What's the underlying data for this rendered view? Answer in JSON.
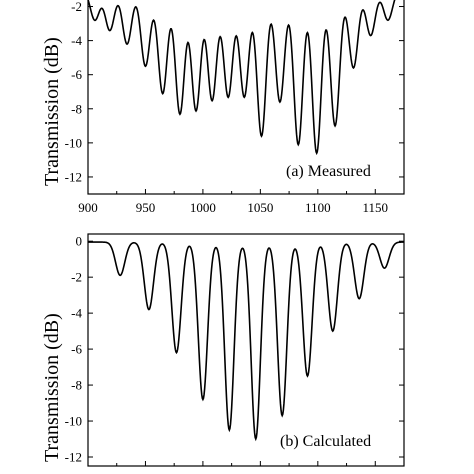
{
  "chart_data": [
    {
      "type": "line",
      "panel": "a",
      "annotation": "(a) Measured",
      "ylabel": "Transmission (dB)",
      "xlim": [
        900,
        1175
      ],
      "ylim": [
        -13,
        -1.5
      ],
      "x_ticks": [
        "900",
        "950",
        "1000",
        "1050",
        "1100",
        "1150"
      ],
      "y_ticks": [
        "-2",
        "-4",
        "-6",
        "-8",
        "-10",
        "-12"
      ],
      "series": [
        {
          "dips": [
            {
              "x": 906,
              "y": -2.8
            },
            {
              "x": 919,
              "y": -3.4
            },
            {
              "x": 934,
              "y": -4.2
            },
            {
              "x": 950,
              "y": -5.5
            },
            {
              "x": 965,
              "y": -7.1
            },
            {
              "x": 980,
              "y": -8.3
            },
            {
              "x": 994,
              "y": -8.1
            },
            {
              "x": 1008,
              "y": -7.5
            },
            {
              "x": 1022,
              "y": -7.3
            },
            {
              "x": 1036,
              "y": -7.3
            },
            {
              "x": 1051,
              "y": -9.6
            },
            {
              "x": 1067,
              "y": -7.6
            },
            {
              "x": 1083,
              "y": -10.1
            },
            {
              "x": 1099,
              "y": -10.6
            },
            {
              "x": 1115,
              "y": -9.0
            },
            {
              "x": 1131,
              "y": -5.6
            },
            {
              "x": 1146,
              "y": -3.7
            },
            {
              "x": 1161,
              "y": -2.8
            }
          ]
        }
      ]
    },
    {
      "type": "line",
      "panel": "b",
      "annotation": "(b) Calculated",
      "ylabel": "Transmission (dB)",
      "xlim": [
        900,
        1175
      ],
      "ylim": [
        -12.5,
        0.4
      ],
      "x_ticks": [],
      "y_ticks": [
        "0",
        "-2",
        "-4",
        "-6",
        "-8",
        "-10",
        "-12"
      ],
      "series": [
        {
          "dips": [
            {
              "x": 928,
              "y": -1.9
            },
            {
              "x": 953,
              "y": -3.8
            },
            {
              "x": 977,
              "y": -6.2
            },
            {
              "x": 1000,
              "y": -8.8
            },
            {
              "x": 1023,
              "y": -10.5
            },
            {
              "x": 1046,
              "y": -11.0
            },
            {
              "x": 1069,
              "y": -9.7
            },
            {
              "x": 1091,
              "y": -7.5
            },
            {
              "x": 1113,
              "y": -5.0
            },
            {
              "x": 1136,
              "y": -3.2
            },
            {
              "x": 1158,
              "y": -1.5
            }
          ]
        }
      ]
    }
  ]
}
